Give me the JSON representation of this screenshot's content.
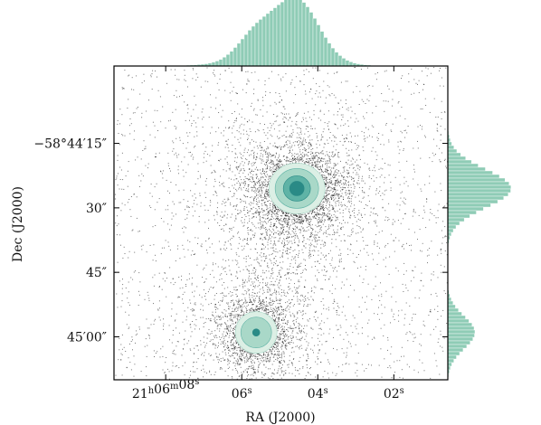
{
  "chart_data": {
    "type": "scatter",
    "xlabel": "RA (J2000)",
    "ylabel": "Dec (J2000)",
    "x_unit": "seconds of RA offset from 21h06m00s",
    "y_unit": "arcsec offset from -58°44'00\"",
    "xlim": [
      9.36,
      0.58
    ],
    "ylim": [
      70,
      -3.0
    ],
    "x_ticks": [
      {
        "value": 8,
        "hms": [
          "21",
          "h",
          "06",
          "m",
          "08",
          "s"
        ]
      },
      {
        "value": 6,
        "hms": [
          "",
          "",
          "06",
          "",
          "",
          "s"
        ]
      },
      {
        "value": 4,
        "hms": [
          "",
          "",
          "04",
          "",
          "",
          "s"
        ]
      },
      {
        "value": 2,
        "hms": [
          "",
          "",
          "02",
          "",
          "",
          "s"
        ]
      }
    ],
    "y_ticks": [
      {
        "value": 15,
        "label": "−58°44′15″"
      },
      {
        "value": 30,
        "label": "30″"
      },
      {
        "value": 45,
        "label": "45″"
      },
      {
        "value": 60,
        "label": "45′00″"
      }
    ],
    "sources": [
      {
        "name": "",
        "ra_s": 4.55,
        "dec_arcsec": 25.5,
        "contour_levels": 3
      },
      {
        "name": "",
        "ra_s": 5.62,
        "dec_arcsec": 59.0,
        "contour_levels": 2
      }
    ],
    "marginal_histograms": {
      "top": "RA distribution",
      "right": "Dec distribution",
      "color": "#8fccb6"
    },
    "contour_colors": [
      "#dcefe5",
      "#a9d8c8",
      "#5fb3a6",
      "#2a8a86"
    ],
    "point_color": "#000000",
    "grid": false,
    "legend": "none"
  }
}
